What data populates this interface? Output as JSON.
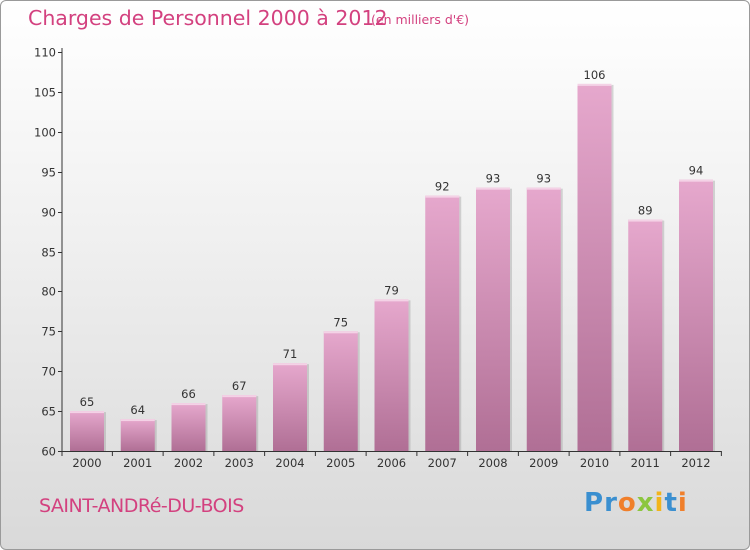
{
  "colors": {
    "accent": "#d3417f",
    "bar_top": "#e6a8cd",
    "bar_bottom": "#b06f95",
    "axis": "#333333",
    "grid": "#cfcfcf"
  },
  "header": {
    "title": "Charges de Personnel 2000 à 2012",
    "subtitle": "(en milliers d'€)"
  },
  "footer": {
    "place": "SAINT-ANDRé-DU-BOIS",
    "logo": [
      {
        "char": "P",
        "color": "#3a8fd0"
      },
      {
        "char": "r",
        "color": "#3a8fd0"
      },
      {
        "char": "o",
        "color": "#f07f2b"
      },
      {
        "char": "x",
        "color": "#8cc63f"
      },
      {
        "char": "i",
        "color": "#f2b41b"
      },
      {
        "char": "t",
        "color": "#3a8fd0"
      },
      {
        "char": "i",
        "color": "#f07f2b"
      }
    ]
  },
  "chart_data": {
    "type": "bar",
    "title": "Charges de Personnel 2000 à 2012",
    "subtitle": "(en milliers d'€)",
    "xlabel": "",
    "ylabel": "",
    "categories": [
      "2000",
      "2001",
      "2002",
      "2003",
      "2004",
      "2005",
      "2006",
      "2007",
      "2008",
      "2009",
      "2010",
      "2011",
      "2012"
    ],
    "values": [
      65,
      64,
      66,
      67,
      71,
      75,
      79,
      92,
      93,
      93,
      106,
      89,
      94
    ],
    "ylim": [
      60,
      110
    ],
    "yticks": [
      60,
      65,
      70,
      75,
      80,
      85,
      90,
      95,
      100,
      105,
      110
    ],
    "grid": false,
    "data_labels": true
  }
}
